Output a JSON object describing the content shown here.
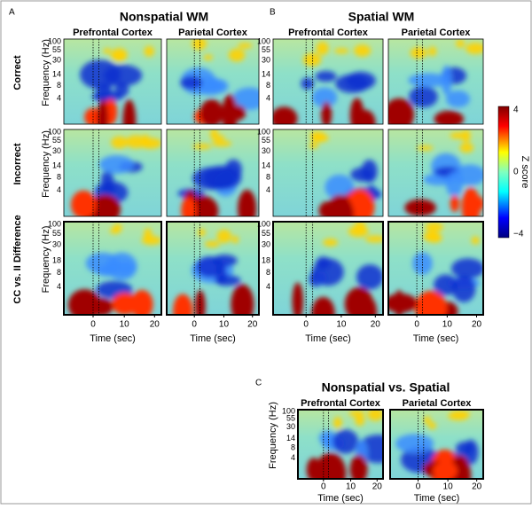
{
  "panels": [
    {
      "label": "A",
      "title": "Nonspatial WM",
      "columns": [
        "Prefrontal Cortex",
        "Parietal Cortex"
      ],
      "rows": [
        {
          "label": "Correct",
          "y_label": "Frequency (Hz)",
          "yticks": [
            "100",
            "55",
            "30",
            "14",
            "8",
            "4"
          ]
        },
        {
          "label": "Incorrect",
          "y_label": "Frequency (Hz)",
          "yticks": [
            "100",
            "55",
            "30",
            "14",
            "8",
            "4"
          ]
        },
        {
          "label": "CC vs. II Difference",
          "y_label": "Frequency (Hz)",
          "yticks": [
            "100",
            "55",
            "30",
            "18",
            "8",
            "4"
          ]
        }
      ],
      "xticks": [
        "0",
        "10",
        "20"
      ],
      "x_label": "Time (sec)"
    },
    {
      "label": "B",
      "title": "Spatial WM",
      "columns": [
        "Prefrontal Cortex",
        "Parietal Cortex"
      ],
      "rows": [
        {
          "yticks": [
            "100",
            "55",
            "30",
            "14",
            "8",
            "4"
          ]
        },
        {
          "yticks": [
            "100",
            "55",
            "30",
            "14",
            "8",
            "4"
          ]
        },
        {
          "yticks": [
            "100",
            "55",
            "30",
            "18",
            "8",
            "4"
          ]
        }
      ],
      "xticks": [
        "0",
        "10",
        "20"
      ],
      "x_label": "Time (sec)"
    },
    {
      "label": "C",
      "title": "Nonspatial vs. Spatial",
      "columns": [
        "Prefrontal Cortex",
        "Parietal Cortex"
      ],
      "rows": [
        {
          "y_label": "Frequency (Hz)",
          "yticks": [
            "100",
            "55",
            "30",
            "14",
            "8",
            "4"
          ]
        }
      ],
      "xticks": [
        "0",
        "10",
        "20"
      ],
      "x_label": "Time (sec)"
    }
  ],
  "colorbar": {
    "ticks": [
      "4",
      "0",
      "−4"
    ],
    "label": "Z score"
  }
}
